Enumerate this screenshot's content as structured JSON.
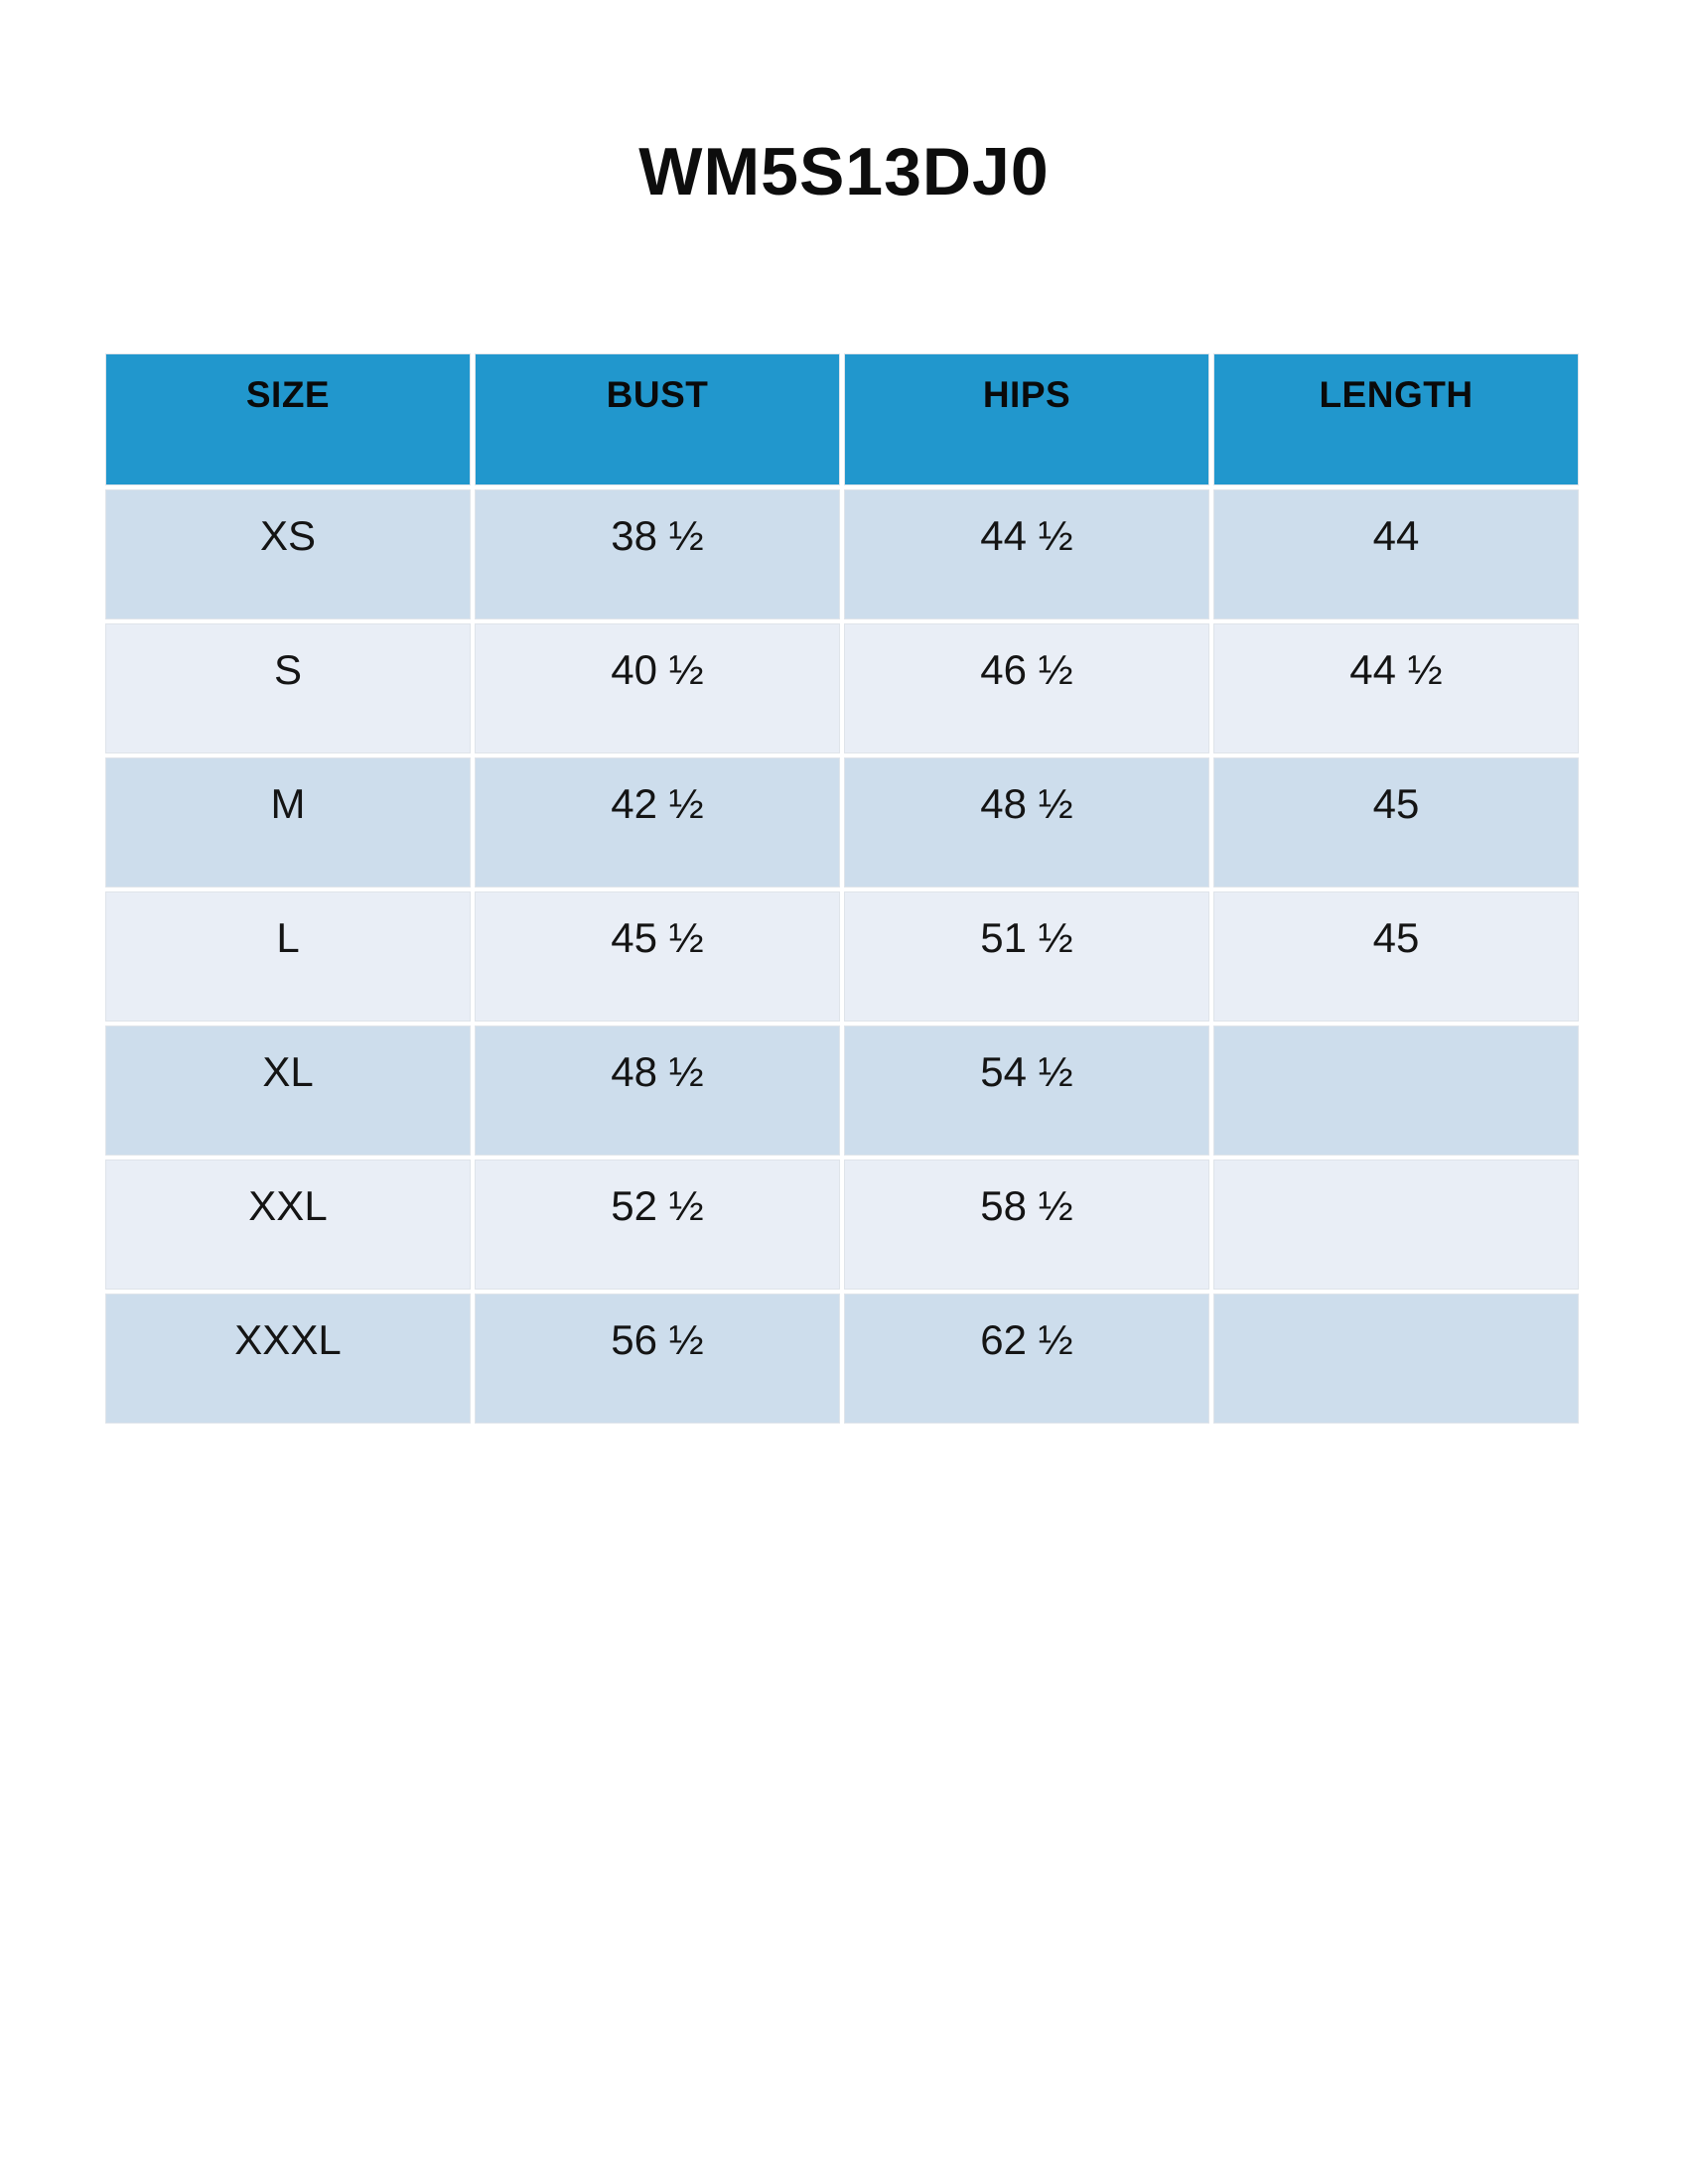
{
  "title": "WM5S13DJ0",
  "table": {
    "headers": [
      "SIZE",
      "BUST",
      "HIPS",
      "LENGTH"
    ],
    "rows": [
      [
        "XS",
        "38 ½",
        "44 ½",
        "44"
      ],
      [
        "S",
        "40 ½",
        "46 ½",
        "44 ½"
      ],
      [
        "M",
        "42 ½",
        "48 ½",
        "45"
      ],
      [
        "L",
        "45 ½",
        "51 ½",
        "45"
      ],
      [
        "XL",
        "48 ½",
        "54 ½",
        ""
      ],
      [
        "XXL",
        "52 ½",
        "58 ½",
        ""
      ],
      [
        "XXXL",
        "56 ½",
        "62 ½",
        ""
      ]
    ]
  },
  "colors": {
    "header_bg": "#2197cd",
    "row_alt_dark": "#cdddec",
    "row_alt_light": "#e9eef6",
    "text": "#111111",
    "page_bg": "#ffffff"
  }
}
